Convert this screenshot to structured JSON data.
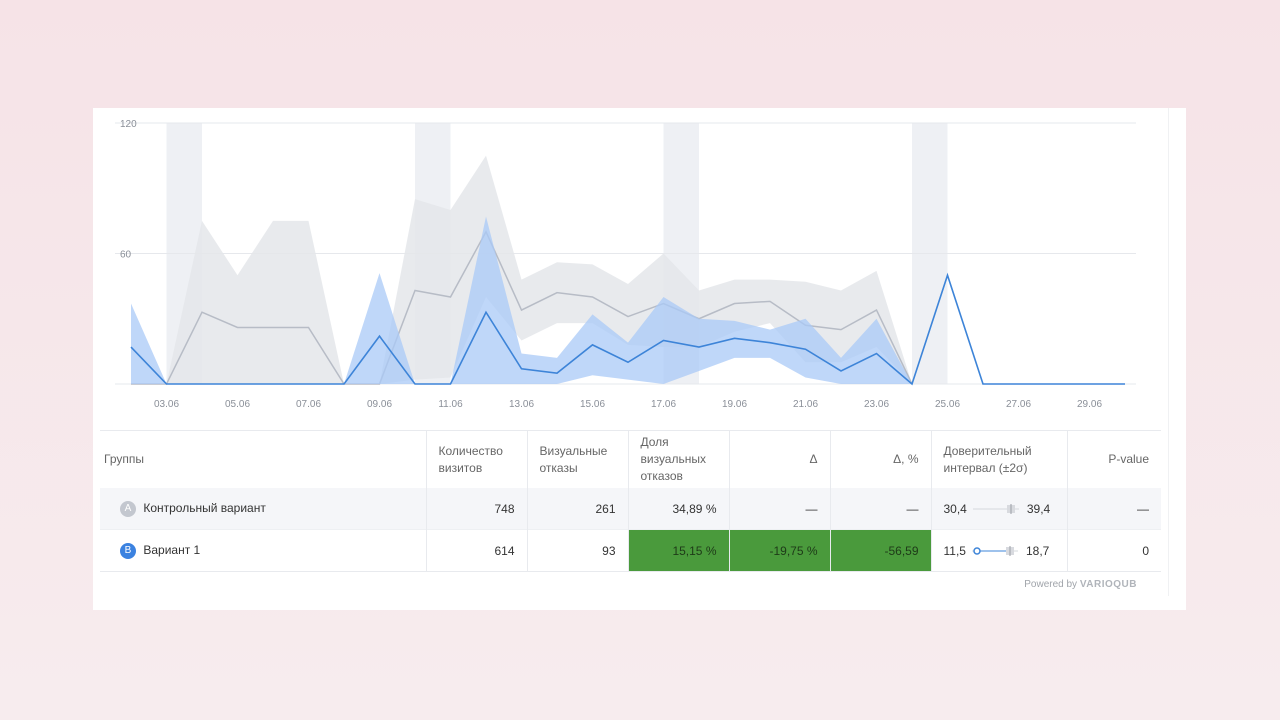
{
  "chart_data": {
    "type": "line",
    "x": [
      "02.06",
      "03.06",
      "04.06",
      "05.06",
      "06.06",
      "07.06",
      "08.06",
      "09.06",
      "10.06",
      "11.06",
      "12.06",
      "13.06",
      "14.06",
      "15.06",
      "16.06",
      "17.06",
      "18.06",
      "19.06",
      "20.06",
      "21.06",
      "22.06",
      "23.06",
      "24.06",
      "25.06",
      "26.06",
      "27.06",
      "28.06",
      "29.06",
      "30.06"
    ],
    "x_tick_labels": [
      "03.06",
      "05.06",
      "07.06",
      "09.06",
      "11.06",
      "13.06",
      "15.06",
      "17.06",
      "19.06",
      "21.06",
      "23.06",
      "25.06",
      "27.06",
      "29.06"
    ],
    "y_tick_labels": [
      "120",
      "60"
    ],
    "ylim": [
      0,
      120
    ],
    "weekend_shading": [
      [
        "03.06",
        "04.06"
      ],
      [
        "10.06",
        "11.06"
      ],
      [
        "17.06",
        "18.06"
      ],
      [
        "24.06",
        "25.06"
      ]
    ],
    "series": [
      {
        "color": "#b7bcc6",
        "band_color": "#e4e6ea",
        "values": [
          0,
          0,
          33,
          26,
          26,
          26,
          0,
          0,
          43,
          40,
          70,
          34,
          42,
          40,
          31,
          37,
          30,
          37,
          38,
          27,
          25,
          34,
          0,
          null,
          null,
          null,
          null,
          null,
          null
        ],
        "upper": [
          0,
          0,
          75,
          50,
          75,
          75,
          0,
          0,
          85,
          80,
          105,
          48,
          56,
          55,
          46,
          60,
          43,
          48,
          48,
          47,
          43,
          52,
          0,
          null,
          null,
          null,
          null,
          null,
          null
        ],
        "lower": [
          0,
          0,
          0,
          0,
          0,
          0,
          0,
          0,
          2,
          3,
          40,
          20,
          28,
          28,
          18,
          17,
          17,
          24,
          28,
          10,
          10,
          17,
          0,
          null,
          null,
          null,
          null,
          null,
          null
        ]
      },
      {
        "color": "#3d84d8",
        "band_color": "#a9c9f7",
        "values": [
          17,
          0,
          0,
          0,
          0,
          0,
          0,
          22,
          0,
          0,
          33,
          7,
          5,
          18,
          10,
          20,
          17,
          21,
          19,
          16,
          6,
          14,
          0,
          50,
          0,
          0,
          0,
          0,
          0
        ],
        "upper": [
          37,
          0,
          0,
          0,
          0,
          0,
          0,
          51,
          0,
          0,
          77,
          14,
          12,
          32,
          19,
          40,
          30,
          29,
          25,
          30,
          12,
          30,
          0,
          50,
          0,
          0,
          0,
          0,
          0
        ],
        "lower": [
          0,
          0,
          0,
          0,
          0,
          0,
          0,
          0,
          0,
          0,
          0,
          0,
          0,
          4,
          2,
          0,
          6,
          12,
          12,
          3,
          0,
          0,
          0,
          50,
          0,
          0,
          0,
          0,
          0
        ]
      }
    ]
  },
  "table": {
    "headers": {
      "groups": "Группы",
      "visits": "Количество визитов",
      "bounces": "Визуальные отказы",
      "bounce_share": "Доля визуальных отказов",
      "delta": "Δ",
      "delta_pct": "Δ, %",
      "ci": "Доверительный интервал (±2σ)",
      "pvalue": "P-value"
    },
    "rows": [
      {
        "badge": "A",
        "name": "Контрольный вариант",
        "visits": "748",
        "bounces": "261",
        "bounce_share": "34,89 %",
        "delta": "—",
        "delta_pct": "—",
        "ci_low": "30,4",
        "ci_high": "39,4",
        "pvalue": "—"
      },
      {
        "badge": "B",
        "name": "Вариант 1",
        "visits": "614",
        "bounces": "93",
        "bounce_share": "15,15 %",
        "delta": "-19,75 %",
        "delta_pct": "-56,59",
        "ci_low": "11,5",
        "ci_high": "18,7",
        "pvalue": "0"
      }
    ]
  },
  "footer": {
    "powered_by": "Powered by",
    "brand": "VARIOQUB"
  },
  "colors": {
    "significant": "#4a9a3c",
    "badge_a": "#c3c7cf",
    "badge_b": "#3b82e0"
  }
}
